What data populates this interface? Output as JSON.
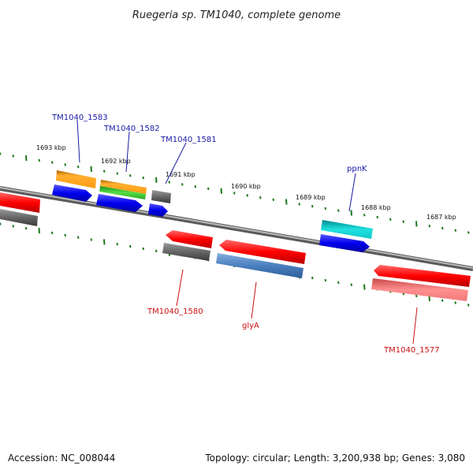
{
  "title": "Ruegeria sp. TM1040, complete genome",
  "footer": {
    "accession": "Accession: NC_008044",
    "topology": "Topology: circular; Length: 3,200,938 bp; Genes: 3,080"
  },
  "colors": {
    "forward_label": "#1a1aa6",
    "reverse_label": "#cc1111",
    "backbone": "#8a8a8a",
    "ticks": "#1a7a1a"
  },
  "scale_labels": [
    "1693 kbp",
    "1692 kbp",
    "1691 kbp",
    "1690 kbp",
    "1689 kbp",
    "1688 kbp",
    "1687 kbp"
  ],
  "gene_labels": {
    "forward": [
      "TM1040_1583",
      "TM1040_1582",
      "TM1040_1581",
      "ppnK"
    ],
    "reverse": [
      "TM1040_1580",
      "glyA",
      "TM1040_1577"
    ]
  }
}
